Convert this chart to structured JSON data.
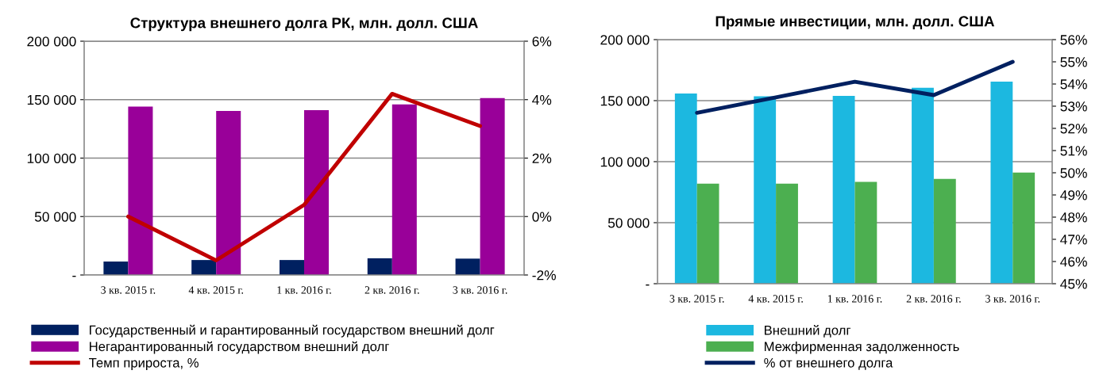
{
  "chart_data": [
    {
      "type": "bar",
      "title": "Структура внешнего долга РК, млн. долл. США",
      "categories": [
        "3 кв. 2015 г.",
        "4 кв. 2015 г.",
        "1 кв. 2016 г.",
        "2 кв. 2016 г.",
        "3 кв. 2016 г."
      ],
      "series": [
        {
          "name": "Государственный и гарантированный государством внешний долг",
          "color": "#002060",
          "values": [
            11500,
            12800,
            12800,
            14300,
            14000
          ]
        },
        {
          "name": "Негарантированный государством внешний долг",
          "color": "#990099",
          "values": [
            144100,
            140400,
            141000,
            145900,
            151400
          ]
        },
        {
          "name": "Темп прироста, %",
          "type": "line",
          "axis": "y2",
          "color": "#c00000",
          "values": [
            0.0,
            -1.5,
            0.4,
            4.2,
            3.1
          ]
        }
      ],
      "ylim": [
        0,
        200000
      ],
      "yticks": [
        {
          "value": 0,
          "label": "-"
        },
        {
          "value": 50000,
          "label": "50 000"
        },
        {
          "value": 100000,
          "label": "100 000"
        },
        {
          "value": 150000,
          "label": "150 000"
        },
        {
          "value": 200000,
          "label": "200 000"
        }
      ],
      "y2lim": [
        -2,
        6
      ],
      "y2ticks": [
        {
          "value": -2,
          "label": "-2%"
        },
        {
          "value": 0,
          "label": "0%"
        },
        {
          "value": 2,
          "label": "2%"
        },
        {
          "value": 4,
          "label": "4%"
        },
        {
          "value": 6,
          "label": "6%"
        }
      ],
      "grid": "y",
      "legend": "bottom"
    },
    {
      "type": "bar",
      "title": "Прямые инвестиции, млн. долл. США",
      "categories": [
        "3 кв. 2015 г.",
        "4 кв. 2015 г.",
        "1 кв. 2016 г.",
        "2 кв. 2016 г.",
        "3 кв. 2016 г."
      ],
      "series": [
        {
          "name": "Внешний долг",
          "color": "#1cb8e0",
          "values": [
            155900,
            153600,
            153900,
            160500,
            165600
          ]
        },
        {
          "name": "Межфирменная задолженность",
          "color": "#4caf50",
          "values": [
            81900,
            81900,
            83400,
            85900,
            91000
          ]
        },
        {
          "name": "% от внешнего долга",
          "type": "line",
          "axis": "y2",
          "color": "#002060",
          "values": [
            52.7,
            53.4,
            54.1,
            53.5,
            55.0
          ]
        }
      ],
      "ylim": [
        0,
        200000
      ],
      "yticks": [
        {
          "value": 0,
          "label": "-"
        },
        {
          "value": 50000,
          "label": "50 000"
        },
        {
          "value": 100000,
          "label": "100 000"
        },
        {
          "value": 150000,
          "label": "150 000"
        },
        {
          "value": 200000,
          "label": "200 000"
        }
      ],
      "y2lim": [
        45,
        56
      ],
      "y2ticks": [
        {
          "value": 45,
          "label": "45%"
        },
        {
          "value": 46,
          "label": "46%"
        },
        {
          "value": 47,
          "label": "47%"
        },
        {
          "value": 48,
          "label": "48%"
        },
        {
          "value": 49,
          "label": "49%"
        },
        {
          "value": 50,
          "label": "50%"
        },
        {
          "value": 51,
          "label": "51%"
        },
        {
          "value": 52,
          "label": "52%"
        },
        {
          "value": 53,
          "label": "53%"
        },
        {
          "value": 54,
          "label": "54%"
        },
        {
          "value": 55,
          "label": "55%"
        },
        {
          "value": 56,
          "label": "56%"
        }
      ],
      "grid": "y",
      "legend": "bottom"
    }
  ]
}
